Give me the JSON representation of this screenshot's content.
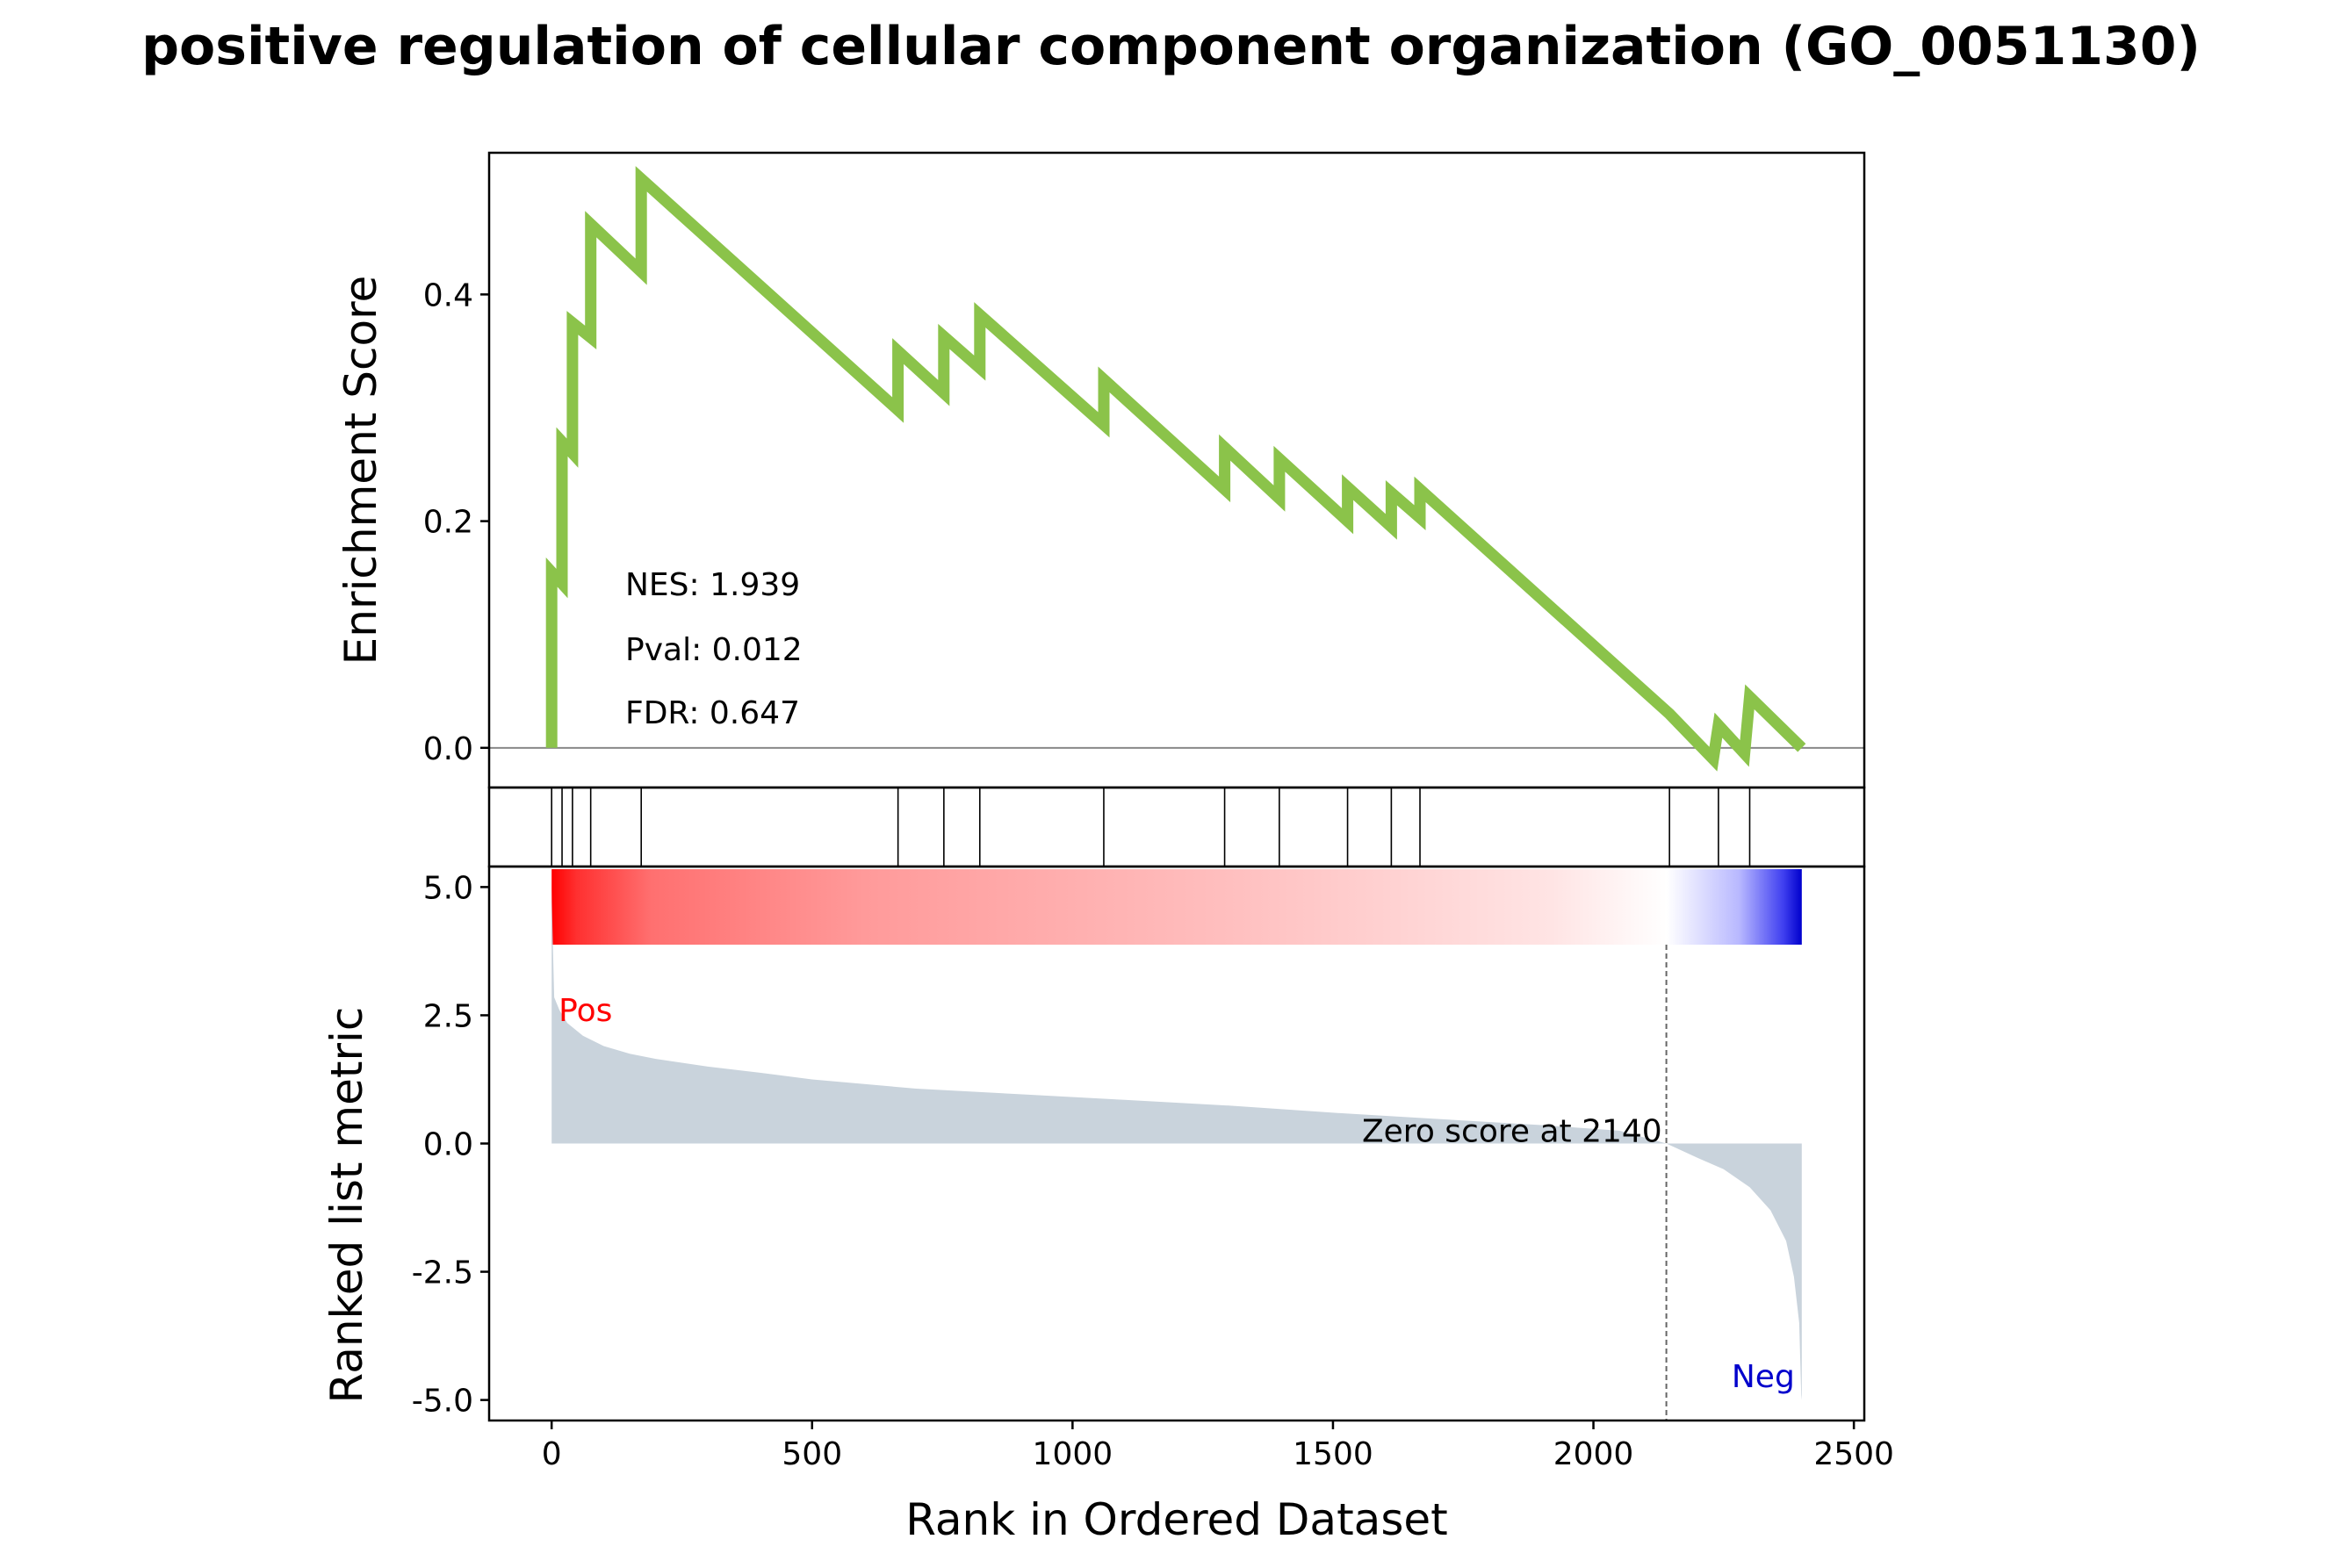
{
  "title": "positive regulation of cellular component organization (GO_0051130)",
  "chart_data": {
    "type": "line",
    "title": "positive regulation of cellular component organization (GO_0051130)",
    "n_genes": 2400,
    "enrichment": {
      "ylabel": "Enrichment Score",
      "ylim": [
        -0.035,
        0.525
      ],
      "yticks": [
        0.0,
        0.2,
        0.4
      ],
      "ytick_labels": [
        "0.0",
        "0.2",
        "0.4"
      ],
      "line_color": "#8BC34A",
      "stats": {
        "nes": "NES: 1.939",
        "pval": "Pval: 0.012",
        "fdr": "FDR: 0.647"
      },
      "hit_positions": [
        0,
        20,
        40,
        75,
        172,
        665,
        753,
        822,
        1060,
        1292,
        1397,
        1528,
        1612,
        1667,
        2146,
        2240,
        2300
      ],
      "running_es": [
        [
          0,
          0.0
        ],
        [
          0,
          0.155
        ],
        [
          20,
          0.145
        ],
        [
          20,
          0.27
        ],
        [
          40,
          0.26
        ],
        [
          40,
          0.375
        ],
        [
          75,
          0.362
        ],
        [
          75,
          0.462
        ],
        [
          172,
          0.42
        ],
        [
          172,
          0.502
        ],
        [
          665,
          0.298
        ],
        [
          665,
          0.35
        ],
        [
          753,
          0.313
        ],
        [
          753,
          0.363
        ],
        [
          822,
          0.335
        ],
        [
          822,
          0.382
        ],
        [
          1060,
          0.285
        ],
        [
          1060,
          0.325
        ],
        [
          1292,
          0.228
        ],
        [
          1292,
          0.265
        ],
        [
          1397,
          0.22
        ],
        [
          1397,
          0.255
        ],
        [
          1528,
          0.2
        ],
        [
          1528,
          0.23
        ],
        [
          1612,
          0.195
        ],
        [
          1612,
          0.225
        ],
        [
          1667,
          0.203
        ],
        [
          1667,
          0.228
        ],
        [
          2146,
          0.03
        ],
        [
          2230,
          -0.01
        ],
        [
          2240,
          0.02
        ],
        [
          2290,
          -0.005
        ],
        [
          2300,
          0.045
        ],
        [
          2400,
          0.0
        ]
      ]
    },
    "ranked_metric": {
      "ylabel": "Ranked list metric",
      "xlabel": "Rank in Ordered Dataset",
      "xlim": [
        -120,
        2520
      ],
      "ylim": [
        -5.4,
        5.4
      ],
      "xticks": [
        0,
        500,
        1000,
        1500,
        2000,
        2500
      ],
      "xtick_labels": [
        "0",
        "500",
        "1000",
        "1500",
        "2000",
        "2500"
      ],
      "yticks": [
        5.0,
        2.5,
        0.0,
        -2.5,
        -5.0
      ],
      "ytick_labels": [
        "5.0",
        "2.5",
        "0.0",
        "-2.5",
        "-5.0"
      ],
      "fill_color": "#C9D3DC",
      "zero_cross": 2140,
      "zero_label": "Zero score at 2140",
      "pos_label": "Pos",
      "neg_label": "Neg",
      "pos_color": "#FF0000",
      "neg_color": "#0000CC",
      "curve": [
        [
          0,
          4.95
        ],
        [
          2,
          4.0
        ],
        [
          5,
          2.85
        ],
        [
          15,
          2.6
        ],
        [
          30,
          2.35
        ],
        [
          60,
          2.1
        ],
        [
          100,
          1.9
        ],
        [
          150,
          1.75
        ],
        [
          200,
          1.65
        ],
        [
          300,
          1.5
        ],
        [
          400,
          1.38
        ],
        [
          500,
          1.25
        ],
        [
          700,
          1.07
        ],
        [
          900,
          0.96
        ],
        [
          1100,
          0.85
        ],
        [
          1300,
          0.74
        ],
        [
          1500,
          0.6
        ],
        [
          1700,
          0.48
        ],
        [
          1900,
          0.36
        ],
        [
          2050,
          0.25
        ],
        [
          2140,
          0.0
        ],
        [
          2200,
          -0.28
        ],
        [
          2250,
          -0.5
        ],
        [
          2300,
          -0.85
        ],
        [
          2340,
          -1.3
        ],
        [
          2370,
          -1.9
        ],
        [
          2385,
          -2.6
        ],
        [
          2395,
          -3.5
        ],
        [
          2399,
          -4.9
        ],
        [
          2400,
          -5.0
        ]
      ]
    },
    "colorbar": {
      "gradient_stops": [
        [
          0,
          "#FF0000"
        ],
        [
          0.02,
          "#FF3030"
        ],
        [
          0.08,
          "#FF7070"
        ],
        [
          0.25,
          "#FF9A9A"
        ],
        [
          0.55,
          "#FFC0C0"
        ],
        [
          0.8,
          "#FFE4E4"
        ],
        [
          0.892,
          "#FFFFFF"
        ],
        [
          0.95,
          "#B8B8FF"
        ],
        [
          0.985,
          "#4040F0"
        ],
        [
          1.0,
          "#0000CC"
        ]
      ]
    }
  }
}
